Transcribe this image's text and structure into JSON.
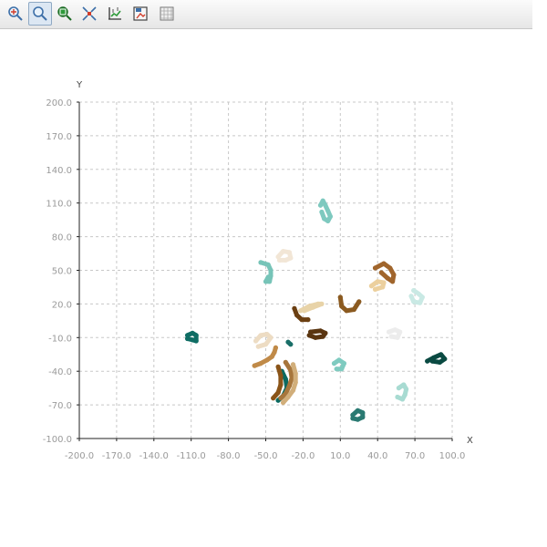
{
  "toolbar": {
    "buttons": [
      {
        "icon": "zoom-in-icon",
        "active": false
      },
      {
        "icon": "zoom-out-icon",
        "active": true
      },
      {
        "icon": "zoom-region-icon",
        "active": false
      },
      {
        "icon": "fit-view-icon",
        "active": false
      },
      {
        "icon": "axis-settings-icon",
        "active": false
      },
      {
        "icon": "save-image-icon",
        "active": false
      },
      {
        "icon": "grid-toggle-icon",
        "active": false
      }
    ]
  },
  "chart_data": {
    "type": "scatter",
    "xlabel": "X",
    "ylabel": "Y",
    "xlim": [
      -200,
      100
    ],
    "ylim": [
      -100,
      200
    ],
    "xticks": [
      "-200.0",
      "-170.0",
      "-140.0",
      "-110.0",
      "-80.0",
      "-50.0",
      "-20.0",
      "10.0",
      "40.0",
      "70.0",
      "100.0"
    ],
    "yticks": [
      "-100.0",
      "-70.0",
      "-40.0",
      "-10.0",
      "20.0",
      "50.0",
      "80.0",
      "110.0",
      "140.0",
      "170.0",
      "200.0"
    ],
    "grid": true,
    "legend": false,
    "clusters": [
      {
        "color": "#7ec9bf",
        "points": [
          [
            -6,
            108
          ],
          [
            -4,
            112
          ],
          [
            -2,
            108
          ],
          [
            0,
            103
          ],
          [
            2,
            98
          ],
          [
            0,
            94
          ],
          [
            -3,
            96
          ],
          [
            -5,
            102
          ]
        ]
      },
      {
        "color": "#77c4b8",
        "points": [
          [
            -54,
            57
          ],
          [
            -48,
            55
          ],
          [
            -46,
            50
          ],
          [
            -46,
            45
          ],
          [
            -47,
            40
          ],
          [
            -50,
            40
          ],
          [
            -48,
            44
          ]
        ]
      },
      {
        "color": "#f2e6d6",
        "points": [
          [
            -40,
            62
          ],
          [
            -36,
            67
          ],
          [
            -31,
            66
          ],
          [
            -30,
            61
          ],
          [
            -34,
            59
          ],
          [
            -39,
            59
          ]
        ]
      },
      {
        "color": "#0f6d64",
        "points": [
          [
            -113,
            -8
          ],
          [
            -109,
            -6
          ],
          [
            -106,
            -8
          ],
          [
            -106,
            -13
          ],
          [
            -109,
            -12
          ],
          [
            -113,
            -11
          ]
        ]
      },
      {
        "color": "#a0652c",
        "points": [
          [
            38,
            52
          ],
          [
            45,
            56
          ],
          [
            50,
            52
          ],
          [
            53,
            46
          ],
          [
            52,
            40
          ],
          [
            48,
            43
          ],
          [
            43,
            48
          ]
        ]
      },
      {
        "color": "#ecd09e",
        "points": [
          [
            35,
            36
          ],
          [
            40,
            40
          ],
          [
            45,
            39
          ],
          [
            44,
            35
          ],
          [
            38,
            33
          ]
        ]
      },
      {
        "color": "#c9e9e4",
        "points": [
          [
            69,
            32
          ],
          [
            73,
            29
          ],
          [
            76,
            26
          ],
          [
            74,
            21
          ],
          [
            69,
            22
          ],
          [
            67,
            27
          ]
        ]
      },
      {
        "color": "#8b5a20",
        "points": [
          [
            10,
            26
          ],
          [
            11,
            18
          ],
          [
            15,
            14
          ],
          [
            21,
            15
          ],
          [
            25,
            22
          ]
        ]
      },
      {
        "color": "#e8d3a8",
        "points": [
          [
            -22,
            14
          ],
          [
            -15,
            18
          ],
          [
            -8,
            20
          ],
          [
            -5,
            20
          ],
          [
            -12,
            17
          ],
          [
            -19,
            14
          ]
        ]
      },
      {
        "color": "#6b3f12",
        "points": [
          [
            -27,
            16
          ],
          [
            -25,
            10
          ],
          [
            -21,
            6
          ],
          [
            -16,
            6
          ]
        ]
      },
      {
        "color": "#5a3510",
        "points": [
          [
            -14,
            -5
          ],
          [
            -6,
            -4
          ],
          [
            -2,
            -6
          ],
          [
            -4,
            -9
          ],
          [
            -10,
            -10
          ],
          [
            -15,
            -8
          ]
        ]
      },
      {
        "color": "#ececec",
        "points": [
          [
            49,
            -5
          ],
          [
            54,
            -3
          ],
          [
            58,
            -5
          ],
          [
            56,
            -10
          ],
          [
            51,
            -9
          ]
        ]
      },
      {
        "color": "#0a4a42",
        "points": [
          [
            80,
            -31
          ],
          [
            85,
            -28
          ],
          [
            91,
            -25
          ],
          [
            94,
            -29
          ],
          [
            90,
            -32
          ],
          [
            84,
            -31
          ]
        ]
      },
      {
        "color": "#eddcc3",
        "points": [
          [
            -58,
            -13
          ],
          [
            -54,
            -8
          ],
          [
            -49,
            -7
          ],
          [
            -46,
            -10
          ],
          [
            -50,
            -16
          ],
          [
            -56,
            -18
          ]
        ]
      },
      {
        "color": "#c08a48",
        "points": [
          [
            -59,
            -35
          ],
          [
            -54,
            -33
          ],
          [
            -49,
            -30
          ],
          [
            -45,
            -27
          ],
          [
            -43,
            -23
          ],
          [
            -42,
            -19
          ]
        ]
      },
      {
        "color": "#1a6f68",
        "points": [
          [
            -32,
            -14
          ],
          [
            -30,
            -16
          ]
        ]
      },
      {
        "color": "#0b6a60",
        "points": [
          [
            -37,
            -40
          ],
          [
            -34,
            -47
          ],
          [
            -33,
            -55
          ],
          [
            -36,
            -62
          ],
          [
            -40,
            -66
          ]
        ]
      },
      {
        "color": "#a7763c",
        "points": [
          [
            -34,
            -32
          ],
          [
            -30,
            -39
          ],
          [
            -29,
            -46
          ],
          [
            -31,
            -53
          ],
          [
            -34,
            -60
          ],
          [
            -38,
            -64
          ]
        ]
      },
      {
        "color": "#d1ae7a",
        "points": [
          [
            -28,
            -34
          ],
          [
            -26,
            -42
          ],
          [
            -26,
            -50
          ],
          [
            -28,
            -57
          ],
          [
            -32,
            -63
          ],
          [
            -36,
            -68
          ]
        ]
      },
      {
        "color": "#8a5418",
        "points": [
          [
            -40,
            -36
          ],
          [
            -38,
            -44
          ],
          [
            -38,
            -52
          ],
          [
            -40,
            -59
          ],
          [
            -44,
            -64
          ]
        ]
      },
      {
        "color": "#7fcbc0",
        "points": [
          [
            5,
            -33
          ],
          [
            9,
            -30
          ],
          [
            13,
            -33
          ],
          [
            11,
            -38
          ],
          [
            7,
            -38
          ]
        ]
      },
      {
        "color": "#a8dbd2",
        "points": [
          [
            57,
            -55
          ],
          [
            61,
            -52
          ],
          [
            63,
            -56
          ],
          [
            62,
            -61
          ],
          [
            60,
            -65
          ],
          [
            56,
            -63
          ]
        ]
      },
      {
        "color": "#2a7a72",
        "points": [
          [
            20,
            -79
          ],
          [
            24,
            -75
          ],
          [
            28,
            -77
          ],
          [
            28,
            -81
          ],
          [
            24,
            -83
          ],
          [
            20,
            -82
          ]
        ]
      }
    ]
  }
}
